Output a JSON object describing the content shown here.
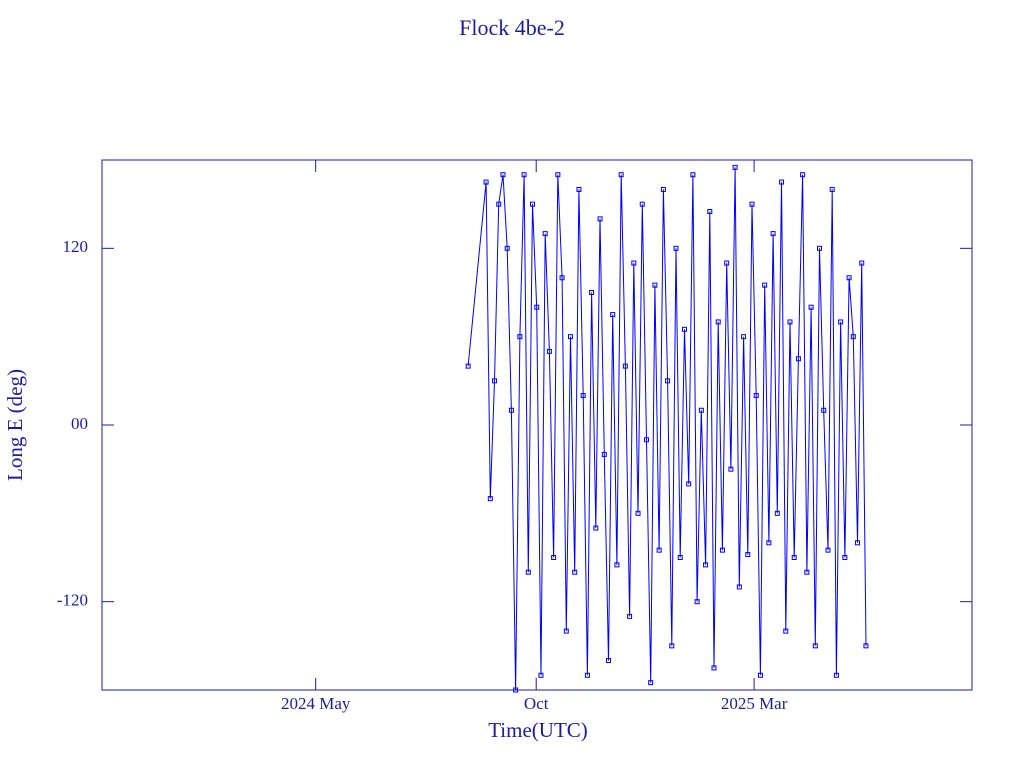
{
  "chart_data": {
    "type": "line",
    "title": "Flock 4be-2",
    "xlabel": "Time(UTC)",
    "ylabel": "Long E (deg)",
    "color": "#0000ff",
    "axis_color": "#1c1ca0",
    "xlim": [
      2023.926,
      2025.575
    ],
    "xticks": [
      {
        "value": 2024.331,
        "label": "2024 May"
      },
      {
        "value": 2024.749,
        "label": "Oct"
      },
      {
        "value": 2025.162,
        "label": "2025 Mar"
      }
    ],
    "ylim": [
      -180,
      180
    ],
    "yticks": [
      -120,
      {
        "value": 0,
        "label": "00"
      },
      120
    ],
    "x": [
      2024.62,
      2024.654,
      2024.662,
      2024.67,
      2024.678,
      2024.686,
      2024.694,
      2024.702,
      2024.71,
      2024.718,
      2024.726,
      2024.734,
      2024.742,
      2024.75,
      2024.758,
      2024.766,
      2024.774,
      2024.782,
      2024.79,
      2024.798,
      2024.806,
      2024.814,
      2024.822,
      2024.83,
      2024.838,
      2024.846,
      2024.854,
      2024.862,
      2024.87,
      2024.878,
      2024.886,
      2024.894,
      2024.902,
      2024.91,
      2024.918,
      2024.926,
      2024.934,
      2024.942,
      2024.95,
      2024.958,
      2024.966,
      2024.974,
      2024.982,
      2024.99,
      2024.998,
      2025.006,
      2025.014,
      2025.022,
      2025.03,
      2025.038,
      2025.046,
      2025.054,
      2025.062,
      2025.07,
      2025.078,
      2025.086,
      2025.094,
      2025.102,
      2025.11,
      2025.118,
      2025.126,
      2025.134,
      2025.142,
      2025.15,
      2025.158,
      2025.166,
      2025.174,
      2025.182,
      2025.19,
      2025.198,
      2025.206,
      2025.214,
      2025.222,
      2025.23,
      2025.238,
      2025.246,
      2025.254,
      2025.262,
      2025.27,
      2025.278,
      2025.286,
      2025.294,
      2025.302,
      2025.31,
      2025.318,
      2025.326,
      2025.334,
      2025.342,
      2025.35,
      2025.358,
      2025.366,
      2025.374
    ],
    "values": [
      40,
      165,
      -50,
      30,
      150,
      170,
      120,
      10,
      -180,
      60,
      170,
      -100,
      150,
      80,
      -170,
      130,
      50,
      -90,
      170,
      100,
      -140,
      60,
      -100,
      160,
      20,
      -170,
      90,
      -70,
      140,
      -20,
      -160,
      75,
      -95,
      170,
      40,
      -130,
      110,
      -60,
      150,
      -10,
      -175,
      95,
      -85,
      160,
      30,
      -150,
      120,
      -90,
      65,
      -40,
      170,
      -120,
      10,
      -95,
      145,
      -165,
      70,
      -85,
      110,
      -30,
      175,
      -110,
      60,
      -88,
      150,
      20,
      -170,
      95,
      -80,
      130,
      -60,
      165,
      -140,
      70,
      -90,
      45,
      170,
      -100,
      80,
      -150,
      120,
      10,
      -85,
      160,
      -170,
      70,
      -90,
      100,
      60,
      -80,
      110,
      -150
    ]
  }
}
